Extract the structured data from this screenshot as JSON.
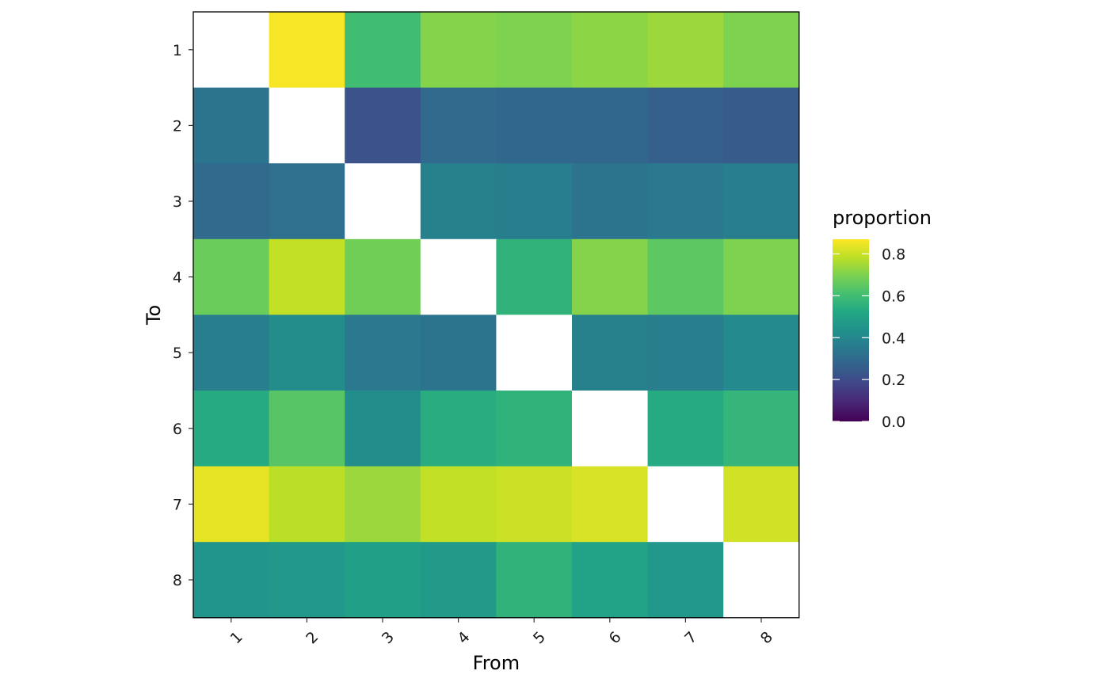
{
  "chart_data": {
    "type": "heatmap",
    "x_categories": [
      "1",
      "2",
      "3",
      "4",
      "5",
      "6",
      "7",
      "8"
    ],
    "y_categories": [
      "1",
      "2",
      "3",
      "4",
      "5",
      "6",
      "7",
      "8"
    ],
    "xlabel": "From",
    "ylabel": "To",
    "legend": {
      "title": "proportion",
      "ticks": [
        "0.0",
        "0.2",
        "0.4",
        "0.6",
        "0.8"
      ],
      "range": [
        0,
        0.87
      ],
      "placement": "right",
      "colormap": "viridis"
    },
    "diagonal_missing_color": "#ffffff",
    "values": [
      [
        null,
        0.86,
        0.6,
        0.71,
        0.7,
        0.72,
        0.74,
        0.7
      ],
      [
        0.33,
        null,
        0.22,
        0.3,
        0.29,
        0.29,
        0.26,
        0.25
      ],
      [
        0.3,
        0.32,
        null,
        0.38,
        0.37,
        0.33,
        0.35,
        0.37
      ],
      [
        0.67,
        0.79,
        0.68,
        null,
        0.56,
        0.71,
        0.65,
        0.7
      ],
      [
        0.37,
        0.42,
        0.35,
        0.33,
        null,
        0.38,
        0.37,
        0.41
      ],
      [
        0.53,
        0.64,
        0.42,
        0.54,
        0.56,
        null,
        0.53,
        0.57
      ],
      [
        0.84,
        0.78,
        0.74,
        0.79,
        0.8,
        0.82,
        null,
        0.81
      ],
      [
        0.45,
        0.46,
        0.49,
        0.47,
        0.56,
        0.5,
        0.46,
        null
      ]
    ]
  }
}
